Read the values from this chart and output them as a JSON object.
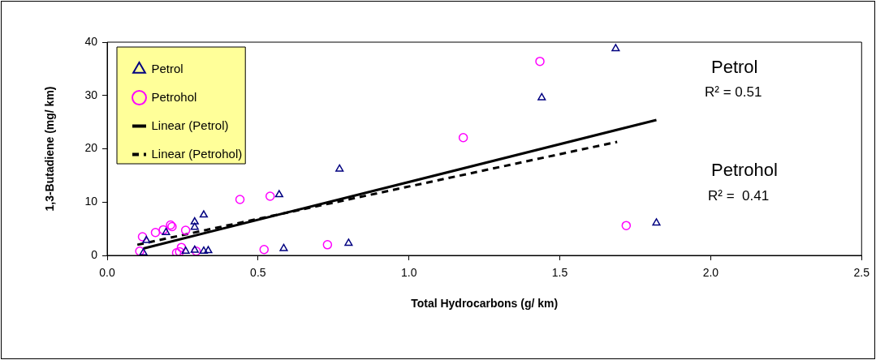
{
  "chart_data": {
    "type": "scatter",
    "xlabel": "Total Hydrocarbons (g/ km)",
    "ylabel": "1,3-Butadiene (mg/ km)",
    "xlim": [
      0,
      2.5
    ],
    "xticks": [
      {
        "value": 0,
        "label": "0.0"
      },
      {
        "value": 0.5,
        "label": "0.5"
      },
      {
        "value": 1,
        "label": "1.0"
      },
      {
        "value": 1.5,
        "label": "1.5"
      },
      {
        "value": 2,
        "label": "2.0"
      },
      {
        "value": 2.5,
        "label": "2.5"
      }
    ],
    "ylim": [
      0,
      40
    ],
    "yticks": [
      0,
      10,
      20,
      30,
      40
    ],
    "grid": false,
    "legend": "top left",
    "annotations": [
      "Petrol",
      "R² = 0.51",
      "Petrohol",
      "R² =  0.41"
    ],
    "series": [
      {
        "name": "Petrol",
        "type": "scatter",
        "marker": "triangle",
        "color": "#000080",
        "x": [
          0.12,
          0.13,
          0.195,
          0.29,
          0.29,
          0.32,
          0.26,
          0.29,
          0.32,
          0.335,
          0.57,
          0.585,
          0.77,
          0.8,
          1.44,
          1.685,
          1.82
        ],
        "values": [
          0.5,
          2.8,
          4.3,
          6.3,
          5.3,
          7.6,
          0.8,
          1.0,
          0.8,
          0.9,
          11.4,
          1.3,
          16.2,
          2.3,
          29.6,
          38.8,
          6.1
        ]
      },
      {
        "name": "Petrohol",
        "type": "scatter",
        "marker": "circle",
        "color": "#ff00ff",
        "x": [
          0.108,
          0.117,
          0.16,
          0.186,
          0.21,
          0.215,
          0.26,
          0.23,
          0.24,
          0.246,
          0.295,
          0.44,
          0.54,
          0.52,
          0.73,
          1.18,
          1.434,
          1.72
        ],
        "values": [
          0.8,
          3.5,
          4.3,
          4.8,
          5.7,
          5.4,
          4.7,
          0.5,
          0.7,
          1.5,
          0.8,
          10.5,
          11.1,
          1.1,
          2.0,
          22.1,
          36.4,
          5.6
        ]
      },
      {
        "name": "Linear (Petrol)",
        "type": "line",
        "marker": "none",
        "line_style": "solid",
        "color": "#000000",
        "x": [
          0.12,
          1.82
        ],
        "values": [
          1.3,
          25.4
        ]
      },
      {
        "name": "Linear (Petrohol)",
        "type": "line",
        "marker": "none",
        "line_style": "dashed",
        "color": "#000000",
        "x": [
          0.1,
          1.69
        ],
        "values": [
          2.0,
          21.3
        ]
      }
    ]
  }
}
